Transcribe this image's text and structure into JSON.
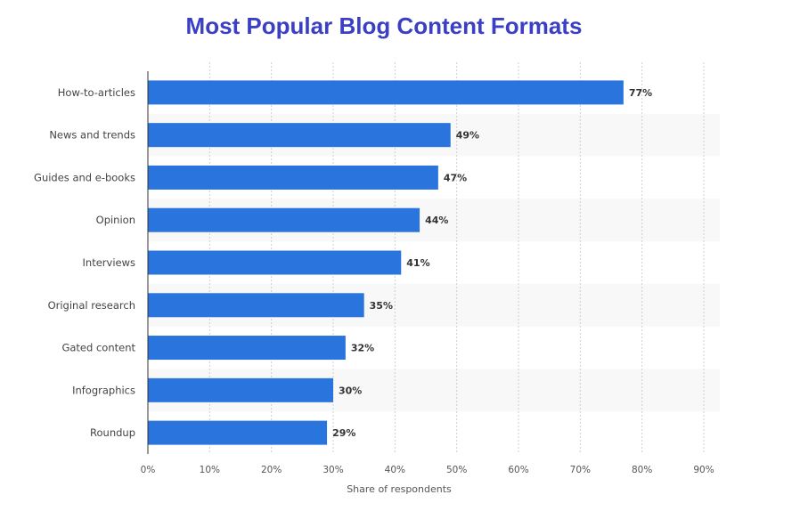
{
  "chart_data": {
    "type": "bar",
    "orientation": "horizontal",
    "title": "Most Popular Blog Content Formats",
    "xlabel": "Share of respondents",
    "ylabel": "",
    "categories": [
      "How-to-articles",
      "News and trends",
      "Guides and e-books",
      "Opinion",
      "Interviews",
      "Original research",
      "Gated content",
      "Infographics",
      "Roundup"
    ],
    "values": [
      77,
      49,
      47,
      44,
      41,
      35,
      32,
      30,
      29
    ],
    "value_labels": [
      "77%",
      "49%",
      "47%",
      "44%",
      "41%",
      "35%",
      "32%",
      "30%",
      "29%"
    ],
    "xlim": [
      0,
      90
    ],
    "x_ticks": [
      "0%",
      "10%",
      "20%",
      "30%",
      "40%",
      "50%",
      "60%",
      "70%",
      "80%",
      "90%"
    ],
    "grid": true,
    "bar_color": "#2a74de",
    "title_color": "#3b3fc4"
  }
}
